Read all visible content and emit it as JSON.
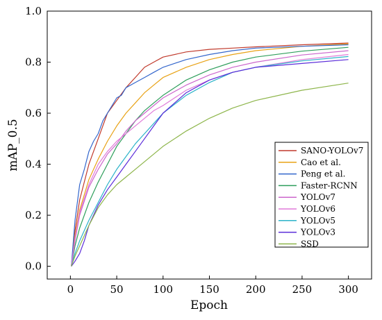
{
  "chart_data": {
    "type": "line",
    "xlabel": "Epoch",
    "ylabel": "mAP_0.5",
    "xlim": [
      -25,
      325
    ],
    "ylim": [
      -0.05,
      1.0
    ],
    "xticks": [
      0,
      50,
      100,
      150,
      200,
      250,
      300
    ],
    "xtick_labels": [
      "0",
      "50",
      "100",
      "150",
      "200",
      "250",
      "300"
    ],
    "yticks": [
      0.0,
      0.2,
      0.4,
      0.6,
      0.8,
      1.0
    ],
    "ytick_labels": [
      "0.0",
      "0.2",
      "0.4",
      "0.6",
      "0.8",
      "1.0"
    ],
    "grid": false,
    "legend_position": "bottom-right",
    "series": [
      {
        "name": "SANO-YOLOv7",
        "color": "#c0392b",
        "x": [
          1,
          5,
          10,
          20,
          30,
          40,
          50,
          60,
          70,
          80,
          90,
          100,
          125,
          150,
          175,
          200,
          250,
          300
        ],
        "y": [
          0.0,
          0.14,
          0.26,
          0.4,
          0.5,
          0.6,
          0.65,
          0.7,
          0.74,
          0.78,
          0.8,
          0.82,
          0.84,
          0.85,
          0.855,
          0.86,
          0.868,
          0.875
        ]
      },
      {
        "name": "Cao et al.",
        "color": "#e8a215",
        "x": [
          1,
          5,
          10,
          20,
          30,
          40,
          50,
          60,
          70,
          80,
          90,
          100,
          125,
          150,
          175,
          200,
          250,
          300
        ],
        "y": [
          0.0,
          0.12,
          0.22,
          0.34,
          0.42,
          0.49,
          0.55,
          0.6,
          0.64,
          0.68,
          0.71,
          0.74,
          0.78,
          0.81,
          0.83,
          0.845,
          0.862,
          0.872
        ]
      },
      {
        "name": "Peng et al.",
        "color": "#3366cc",
        "x": [
          1,
          5,
          10,
          15,
          20,
          25,
          30,
          35,
          40,
          45,
          50,
          55,
          60,
          70,
          80,
          90,
          100,
          125,
          150,
          175,
          200,
          250,
          300
        ],
        "y": [
          0.0,
          0.18,
          0.32,
          0.38,
          0.45,
          0.49,
          0.52,
          0.57,
          0.6,
          0.63,
          0.66,
          0.67,
          0.7,
          0.72,
          0.74,
          0.76,
          0.78,
          0.81,
          0.83,
          0.845,
          0.855,
          0.862,
          0.868
        ]
      },
      {
        "name": "Faster-RCNN",
        "color": "#2e9e5b",
        "x": [
          1,
          5,
          10,
          20,
          30,
          40,
          50,
          60,
          70,
          80,
          90,
          100,
          125,
          150,
          175,
          200,
          250,
          300
        ],
        "y": [
          0.0,
          0.08,
          0.15,
          0.25,
          0.33,
          0.4,
          0.47,
          0.52,
          0.57,
          0.61,
          0.64,
          0.67,
          0.73,
          0.77,
          0.8,
          0.82,
          0.843,
          0.858
        ]
      },
      {
        "name": "YOLOv7",
        "color": "#cc66cc",
        "x": [
          1,
          5,
          10,
          20,
          30,
          40,
          50,
          60,
          70,
          80,
          90,
          100,
          125,
          150,
          175,
          200,
          250,
          300
        ],
        "y": [
          0.0,
          0.1,
          0.2,
          0.31,
          0.38,
          0.44,
          0.48,
          0.53,
          0.57,
          0.6,
          0.63,
          0.66,
          0.71,
          0.75,
          0.78,
          0.8,
          0.828,
          0.845
        ]
      },
      {
        "name": "YOLOv6",
        "color": "#e07ad8",
        "x": [
          1,
          5,
          10,
          20,
          30,
          40,
          50,
          60,
          70,
          80,
          90,
          100,
          125,
          150,
          175,
          200,
          250,
          300
        ],
        "y": [
          0.0,
          0.11,
          0.21,
          0.32,
          0.4,
          0.45,
          0.49,
          0.52,
          0.55,
          0.58,
          0.61,
          0.63,
          0.69,
          0.73,
          0.76,
          0.78,
          0.81,
          0.83
        ]
      },
      {
        "name": "YOLOv5",
        "color": "#2bb3c9",
        "x": [
          1,
          5,
          10,
          20,
          30,
          40,
          50,
          60,
          70,
          80,
          90,
          100,
          125,
          150,
          175,
          200,
          250,
          300
        ],
        "y": [
          0.0,
          0.05,
          0.1,
          0.18,
          0.25,
          0.32,
          0.38,
          0.43,
          0.48,
          0.52,
          0.56,
          0.6,
          0.67,
          0.72,
          0.76,
          0.78,
          0.805,
          0.822
        ]
      },
      {
        "name": "YOLOv3",
        "color": "#5a2bd9",
        "x": [
          1,
          5,
          10,
          15,
          20,
          30,
          40,
          50,
          60,
          70,
          80,
          90,
          100,
          125,
          150,
          175,
          200,
          250,
          300
        ],
        "y": [
          0.0,
          0.02,
          0.05,
          0.1,
          0.16,
          0.24,
          0.3,
          0.35,
          0.4,
          0.45,
          0.5,
          0.55,
          0.6,
          0.68,
          0.73,
          0.76,
          0.78,
          0.795,
          0.81
        ]
      },
      {
        "name": "SSD",
        "color": "#8db54a",
        "x": [
          1,
          5,
          10,
          20,
          30,
          40,
          50,
          60,
          70,
          80,
          90,
          100,
          125,
          150,
          175,
          200,
          250,
          300
        ],
        "y": [
          0.0,
          0.04,
          0.08,
          0.16,
          0.23,
          0.28,
          0.32,
          0.35,
          0.38,
          0.41,
          0.44,
          0.47,
          0.53,
          0.58,
          0.62,
          0.65,
          0.69,
          0.718
        ]
      }
    ]
  }
}
